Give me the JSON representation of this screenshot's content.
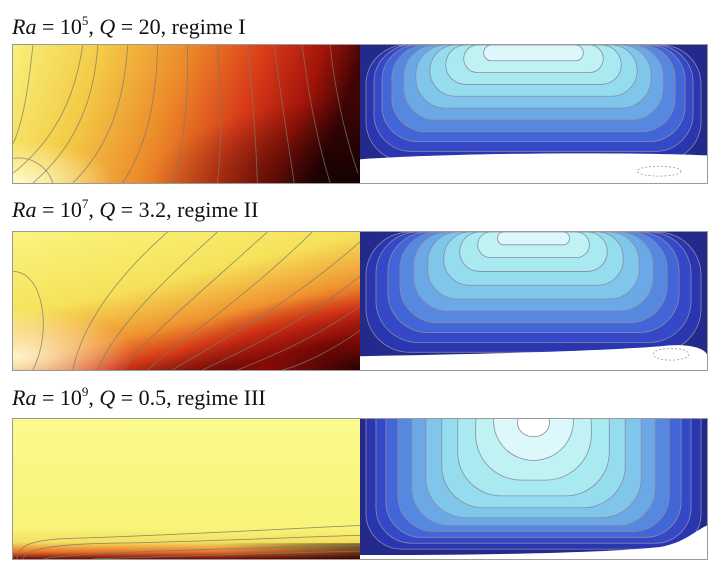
{
  "figure": {
    "panels": [
      {
        "caption": {
          "var1": "Ra",
          "eq1": " = 10",
          "exp": "5",
          "sep": ", ",
          "var2": "Q",
          "eq2": " = 20, regime I"
        },
        "colors": {
          "hot": "#e02010",
          "cold": "#2a2f9a"
        }
      },
      {
        "caption": {
          "var1": "Ra",
          "eq1": " = 10",
          "exp": "7",
          "sep": ", ",
          "var2": "Q",
          "eq2": " = 3.2, regime II"
        },
        "colors": {
          "hot": "#e02010",
          "cold": "#2a2f9a"
        }
      },
      {
        "caption": {
          "var1": "Ra",
          "eq1": " = 10",
          "exp": "9",
          "sep": ", ",
          "var2": "Q",
          "eq2": " = 0.5, regime III"
        },
        "colors": {
          "hot": "#e02010",
          "cold": "#2a2f9a"
        }
      }
    ]
  }
}
